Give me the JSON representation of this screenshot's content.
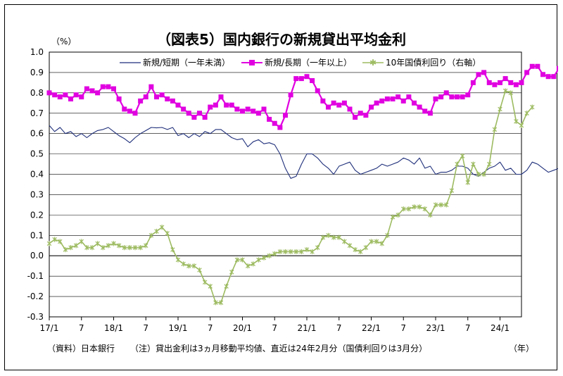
{
  "chart_data": {
    "type": "line",
    "title": "（図表5）国内銀行の新規貸出平均金利",
    "y_unit": "（%）",
    "x_unit": "（年）",
    "ylim": [
      -0.3,
      1.0
    ],
    "yticks": [
      "1.0",
      "0.9",
      "0.8",
      "0.7",
      "0.6",
      "0.5",
      "0.4",
      "0.3",
      "0.2",
      "0.1",
      "0.0",
      "-0.1",
      "-0.2",
      "-0.3"
    ],
    "xtick_labels": [
      "17/1",
      "7",
      "18/1",
      "7",
      "19/1",
      "7",
      "20/1",
      "7",
      "21/1",
      "7",
      "22/1",
      "7",
      "23/1",
      "7",
      "24/1"
    ],
    "source_note": "（資料）日本銀行",
    "footnote": "（注）貸出金利は3ヵ月移動平均値、直近は24年2月分（国債利回りは3月分）",
    "legend": "top-center",
    "grid": true,
    "series": [
      {
        "name": "新規/短期（一年未満）",
        "color": "#1f2f7a",
        "marker": "none",
        "values": [
          0.64,
          0.61,
          0.63,
          0.6,
          0.61,
          0.585,
          0.6,
          0.58,
          0.6,
          0.615,
          0.62,
          0.63,
          0.61,
          0.59,
          0.575,
          0.555,
          0.58,
          0.6,
          0.615,
          0.63,
          0.628,
          0.63,
          0.62,
          0.63,
          0.59,
          0.6,
          0.58,
          0.6,
          0.585,
          0.61,
          0.6,
          0.62,
          0.62,
          0.6,
          0.58,
          0.57,
          0.575,
          0.535,
          0.56,
          0.57,
          0.55,
          0.555,
          0.545,
          0.5,
          0.43,
          0.38,
          0.39,
          0.45,
          0.5,
          0.5,
          0.48,
          0.45,
          0.43,
          0.4,
          0.44,
          0.45,
          0.46,
          0.42,
          0.4,
          0.41,
          0.42,
          0.43,
          0.45,
          0.44,
          0.45,
          0.46,
          0.48,
          0.47,
          0.45,
          0.48,
          0.43,
          0.44,
          0.4,
          0.41,
          0.41,
          0.42,
          0.44,
          0.44,
          0.43,
          0.4,
          0.39,
          0.41,
          0.43,
          0.44,
          0.46,
          0.42,
          0.43,
          0.4,
          0.4,
          0.42,
          0.46,
          0.45,
          0.43,
          0.41,
          0.42,
          0.43
        ]
      },
      {
        "name": "新規/長期（一年以上）",
        "color": "#e000e0",
        "marker": "square",
        "values": [
          0.8,
          0.79,
          0.78,
          0.79,
          0.77,
          0.79,
          0.78,
          0.82,
          0.81,
          0.8,
          0.83,
          0.83,
          0.82,
          0.77,
          0.72,
          0.71,
          0.7,
          0.76,
          0.78,
          0.83,
          0.78,
          0.79,
          0.77,
          0.76,
          0.74,
          0.72,
          0.7,
          0.68,
          0.7,
          0.68,
          0.73,
          0.74,
          0.78,
          0.74,
          0.74,
          0.72,
          0.71,
          0.72,
          0.71,
          0.7,
          0.72,
          0.67,
          0.65,
          0.63,
          0.69,
          0.79,
          0.87,
          0.87,
          0.88,
          0.86,
          0.81,
          0.76,
          0.73,
          0.75,
          0.74,
          0.75,
          0.72,
          0.68,
          0.7,
          0.69,
          0.73,
          0.75,
          0.76,
          0.77,
          0.77,
          0.78,
          0.76,
          0.78,
          0.75,
          0.73,
          0.71,
          0.7,
          0.77,
          0.78,
          0.8,
          0.78,
          0.78,
          0.78,
          0.79,
          0.85,
          0.89,
          0.9,
          0.85,
          0.84,
          0.85,
          0.87,
          0.85,
          0.84,
          0.85,
          0.9,
          0.93,
          0.93,
          0.89,
          0.88,
          0.88,
          0.92
        ]
      },
      {
        "name": "10年国債利回り（右軸）",
        "color": "#9dbb61",
        "marker": "star",
        "values": [
          0.06,
          0.08,
          0.07,
          0.03,
          0.04,
          0.05,
          0.07,
          0.04,
          0.04,
          0.06,
          0.04,
          0.05,
          0.06,
          0.05,
          0.04,
          0.04,
          0.04,
          0.04,
          0.05,
          0.1,
          0.12,
          0.14,
          0.11,
          0.03,
          -0.02,
          -0.04,
          -0.05,
          -0.05,
          -0.07,
          -0.13,
          -0.15,
          -0.23,
          -0.23,
          -0.15,
          -0.08,
          -0.02,
          -0.02,
          -0.05,
          -0.04,
          -0.02,
          -0.01,
          0.0,
          0.01,
          0.02,
          0.02,
          0.02,
          0.02,
          0.02,
          0.03,
          0.02,
          0.04,
          0.09,
          0.1,
          0.09,
          0.09,
          0.07,
          0.05,
          0.03,
          0.02,
          0.04,
          0.07,
          0.07,
          0.06,
          0.1,
          0.19,
          0.2,
          0.23,
          0.23,
          0.24,
          0.24,
          0.23,
          0.2,
          0.25,
          0.25,
          0.25,
          0.32,
          0.45,
          0.49,
          0.36,
          0.45,
          0.4,
          0.4,
          0.45,
          0.62,
          0.72,
          0.81,
          0.8,
          0.66,
          0.64,
          0.7,
          0.73
        ]
      }
    ]
  }
}
